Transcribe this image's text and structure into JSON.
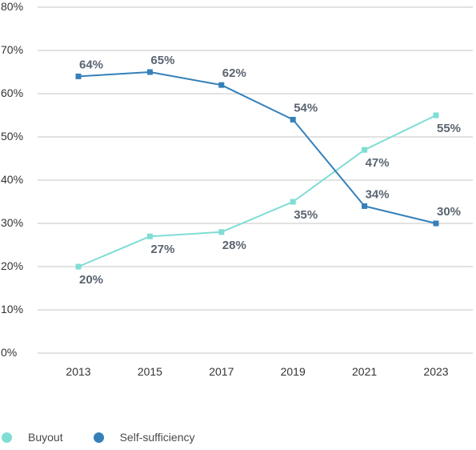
{
  "chart_data": {
    "type": "line",
    "title": "",
    "xlabel": "",
    "ylabel": "",
    "x": [
      "2013",
      "2015",
      "2017",
      "2019",
      "2021",
      "2023"
    ],
    "ylim": [
      0,
      80
    ],
    "yticks": [
      0,
      10,
      20,
      30,
      40,
      50,
      60,
      70,
      80
    ],
    "ytick_labels": [
      "0%",
      "10%",
      "20%",
      "30%",
      "40%",
      "50%",
      "60%",
      "70%",
      "80%"
    ],
    "grid": "horizontal",
    "legend_position": "bottom-left",
    "series": [
      {
        "name": "Buyout",
        "color": "#7fddd4",
        "marker": "square",
        "values": [
          20,
          27,
          28,
          35,
          47,
          55
        ],
        "labels": [
          "20%",
          "27%",
          "28%",
          "35%",
          "47%",
          "55%"
        ],
        "label_position": "below"
      },
      {
        "name": "Self-sufficiency",
        "color": "#3580b8",
        "marker": "square",
        "values": [
          64,
          65,
          62,
          54,
          34,
          30
        ],
        "labels": [
          "64%",
          "65%",
          "62%",
          "54%",
          "34%",
          "30%"
        ],
        "label_position": "above"
      }
    ]
  }
}
